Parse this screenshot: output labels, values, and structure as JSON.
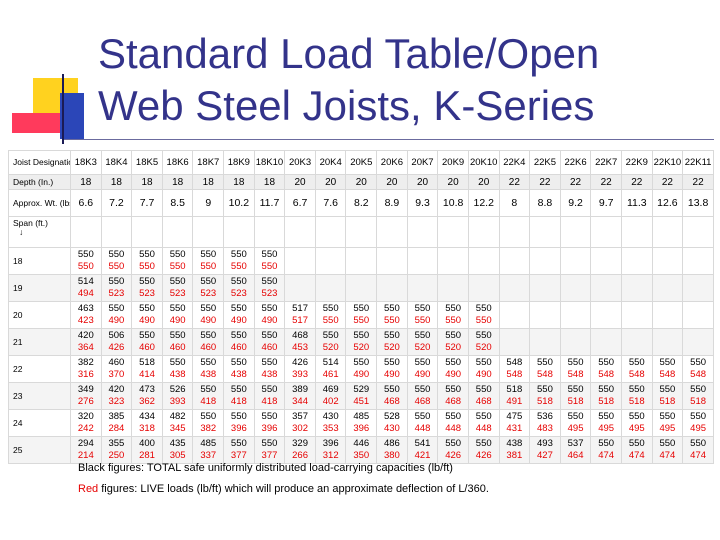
{
  "slide": {
    "title_line1": "Standard Load Table/Open",
    "title_line2": "Web Steel Joists, K-Series"
  },
  "table": {
    "label_designation": "Joist Designation",
    "label_depth": "Depth (In.)",
    "label_weight": "Approx. Wt. (lbs./ft.)",
    "label_span": "Span (ft.)",
    "span_arrow": "↓",
    "joists": [
      "18K3",
      "18K4",
      "18K5",
      "18K6",
      "18K7",
      "18K9",
      "18K10",
      "20K3",
      "20K4",
      "20K5",
      "20K6",
      "20K7",
      "20K9",
      "20K10",
      "22K4",
      "22K5",
      "22K6",
      "22K7",
      "22K9",
      "22K10",
      "22K11"
    ],
    "depths": [
      "18",
      "18",
      "18",
      "18",
      "18",
      "18",
      "18",
      "20",
      "20",
      "20",
      "20",
      "20",
      "20",
      "20",
      "22",
      "22",
      "22",
      "22",
      "22",
      "22",
      "22"
    ],
    "weights": [
      "6.6",
      "7.2",
      "7.7",
      "8.5",
      "9",
      "10.2",
      "11.7",
      "6.7",
      "7.6",
      "8.2",
      "8.9",
      "9.3",
      "10.8",
      "12.2",
      "8",
      "8.8",
      "9.2",
      "9.7",
      "11.3",
      "12.6",
      "13.8"
    ],
    "rows": [
      {
        "span": "18",
        "total": [
          "550",
          "550",
          "550",
          "550",
          "550",
          "550",
          "550",
          "",
          "",
          "",
          "",
          "",
          "",
          "",
          "",
          "",
          "",
          "",
          "",
          "",
          ""
        ],
        "live": [
          "550",
          "550",
          "550",
          "550",
          "550",
          "550",
          "550",
          "",
          "",
          "",
          "",
          "",
          "",
          "",
          "",
          "",
          "",
          "",
          "",
          "",
          ""
        ]
      },
      {
        "span": "19",
        "total": [
          "514",
          "550",
          "550",
          "550",
          "550",
          "550",
          "550",
          "",
          "",
          "",
          "",
          "",
          "",
          "",
          "",
          "",
          "",
          "",
          "",
          "",
          ""
        ],
        "live": [
          "494",
          "523",
          "523",
          "523",
          "523",
          "523",
          "523",
          "",
          "",
          "",
          "",
          "",
          "",
          "",
          "",
          "",
          "",
          "",
          "",
          "",
          ""
        ]
      },
      {
        "span": "20",
        "total": [
          "463",
          "550",
          "550",
          "550",
          "550",
          "550",
          "550",
          "517",
          "550",
          "550",
          "550",
          "550",
          "550",
          "550",
          "",
          "",
          "",
          "",
          "",
          "",
          ""
        ],
        "live": [
          "423",
          "490",
          "490",
          "490",
          "490",
          "490",
          "490",
          "517",
          "550",
          "550",
          "550",
          "550",
          "550",
          "550",
          "",
          "",
          "",
          "",
          "",
          "",
          ""
        ]
      },
      {
        "span": "21",
        "total": [
          "420",
          "506",
          "550",
          "550",
          "550",
          "550",
          "550",
          "468",
          "550",
          "550",
          "550",
          "550",
          "550",
          "550",
          "",
          "",
          "",
          "",
          "",
          "",
          ""
        ],
        "live": [
          "364",
          "426",
          "460",
          "460",
          "460",
          "460",
          "460",
          "453",
          "520",
          "520",
          "520",
          "520",
          "520",
          "520",
          "",
          "",
          "",
          "",
          "",
          "",
          ""
        ]
      },
      {
        "span": "22",
        "total": [
          "382",
          "460",
          "518",
          "550",
          "550",
          "550",
          "550",
          "426",
          "514",
          "550",
          "550",
          "550",
          "550",
          "550",
          "548",
          "550",
          "550",
          "550",
          "550",
          "550",
          "550"
        ],
        "live": [
          "316",
          "370",
          "414",
          "438",
          "438",
          "438",
          "438",
          "393",
          "461",
          "490",
          "490",
          "490",
          "490",
          "490",
          "548",
          "548",
          "548",
          "548",
          "548",
          "548",
          "548"
        ]
      },
      {
        "span": "23",
        "total": [
          "349",
          "420",
          "473",
          "526",
          "550",
          "550",
          "550",
          "389",
          "469",
          "529",
          "550",
          "550",
          "550",
          "550",
          "518",
          "550",
          "550",
          "550",
          "550",
          "550",
          "550"
        ],
        "live": [
          "276",
          "323",
          "362",
          "393",
          "418",
          "418",
          "418",
          "344",
          "402",
          "451",
          "468",
          "468",
          "468",
          "468",
          "491",
          "518",
          "518",
          "518",
          "518",
          "518",
          "518"
        ]
      },
      {
        "span": "24",
        "total": [
          "320",
          "385",
          "434",
          "482",
          "550",
          "550",
          "550",
          "357",
          "430",
          "485",
          "528",
          "550",
          "550",
          "550",
          "475",
          "536",
          "550",
          "550",
          "550",
          "550",
          "550"
        ],
        "live": [
          "242",
          "284",
          "318",
          "345",
          "382",
          "396",
          "396",
          "302",
          "353",
          "396",
          "430",
          "448",
          "448",
          "448",
          "431",
          "483",
          "495",
          "495",
          "495",
          "495",
          "495"
        ]
      },
      {
        "span": "25",
        "total": [
          "294",
          "355",
          "400",
          "435",
          "485",
          "550",
          "550",
          "329",
          "396",
          "446",
          "486",
          "541",
          "550",
          "550",
          "438",
          "493",
          "537",
          "550",
          "550",
          "550",
          "550"
        ],
        "live": [
          "214",
          "250",
          "281",
          "305",
          "337",
          "377",
          "377",
          "266",
          "312",
          "350",
          "380",
          "421",
          "426",
          "426",
          "381",
          "427",
          "464",
          "474",
          "474",
          "474",
          "474"
        ]
      }
    ]
  },
  "notes": {
    "black_prefix": "Black figures:",
    "black_text": " TOTAL safe uniformly distributed load-carrying capacities (lb/ft)",
    "red_prefix": "Red",
    "red_text": " figures: LIVE loads (lb/ft) which will produce an approximate deflection of L/360."
  }
}
